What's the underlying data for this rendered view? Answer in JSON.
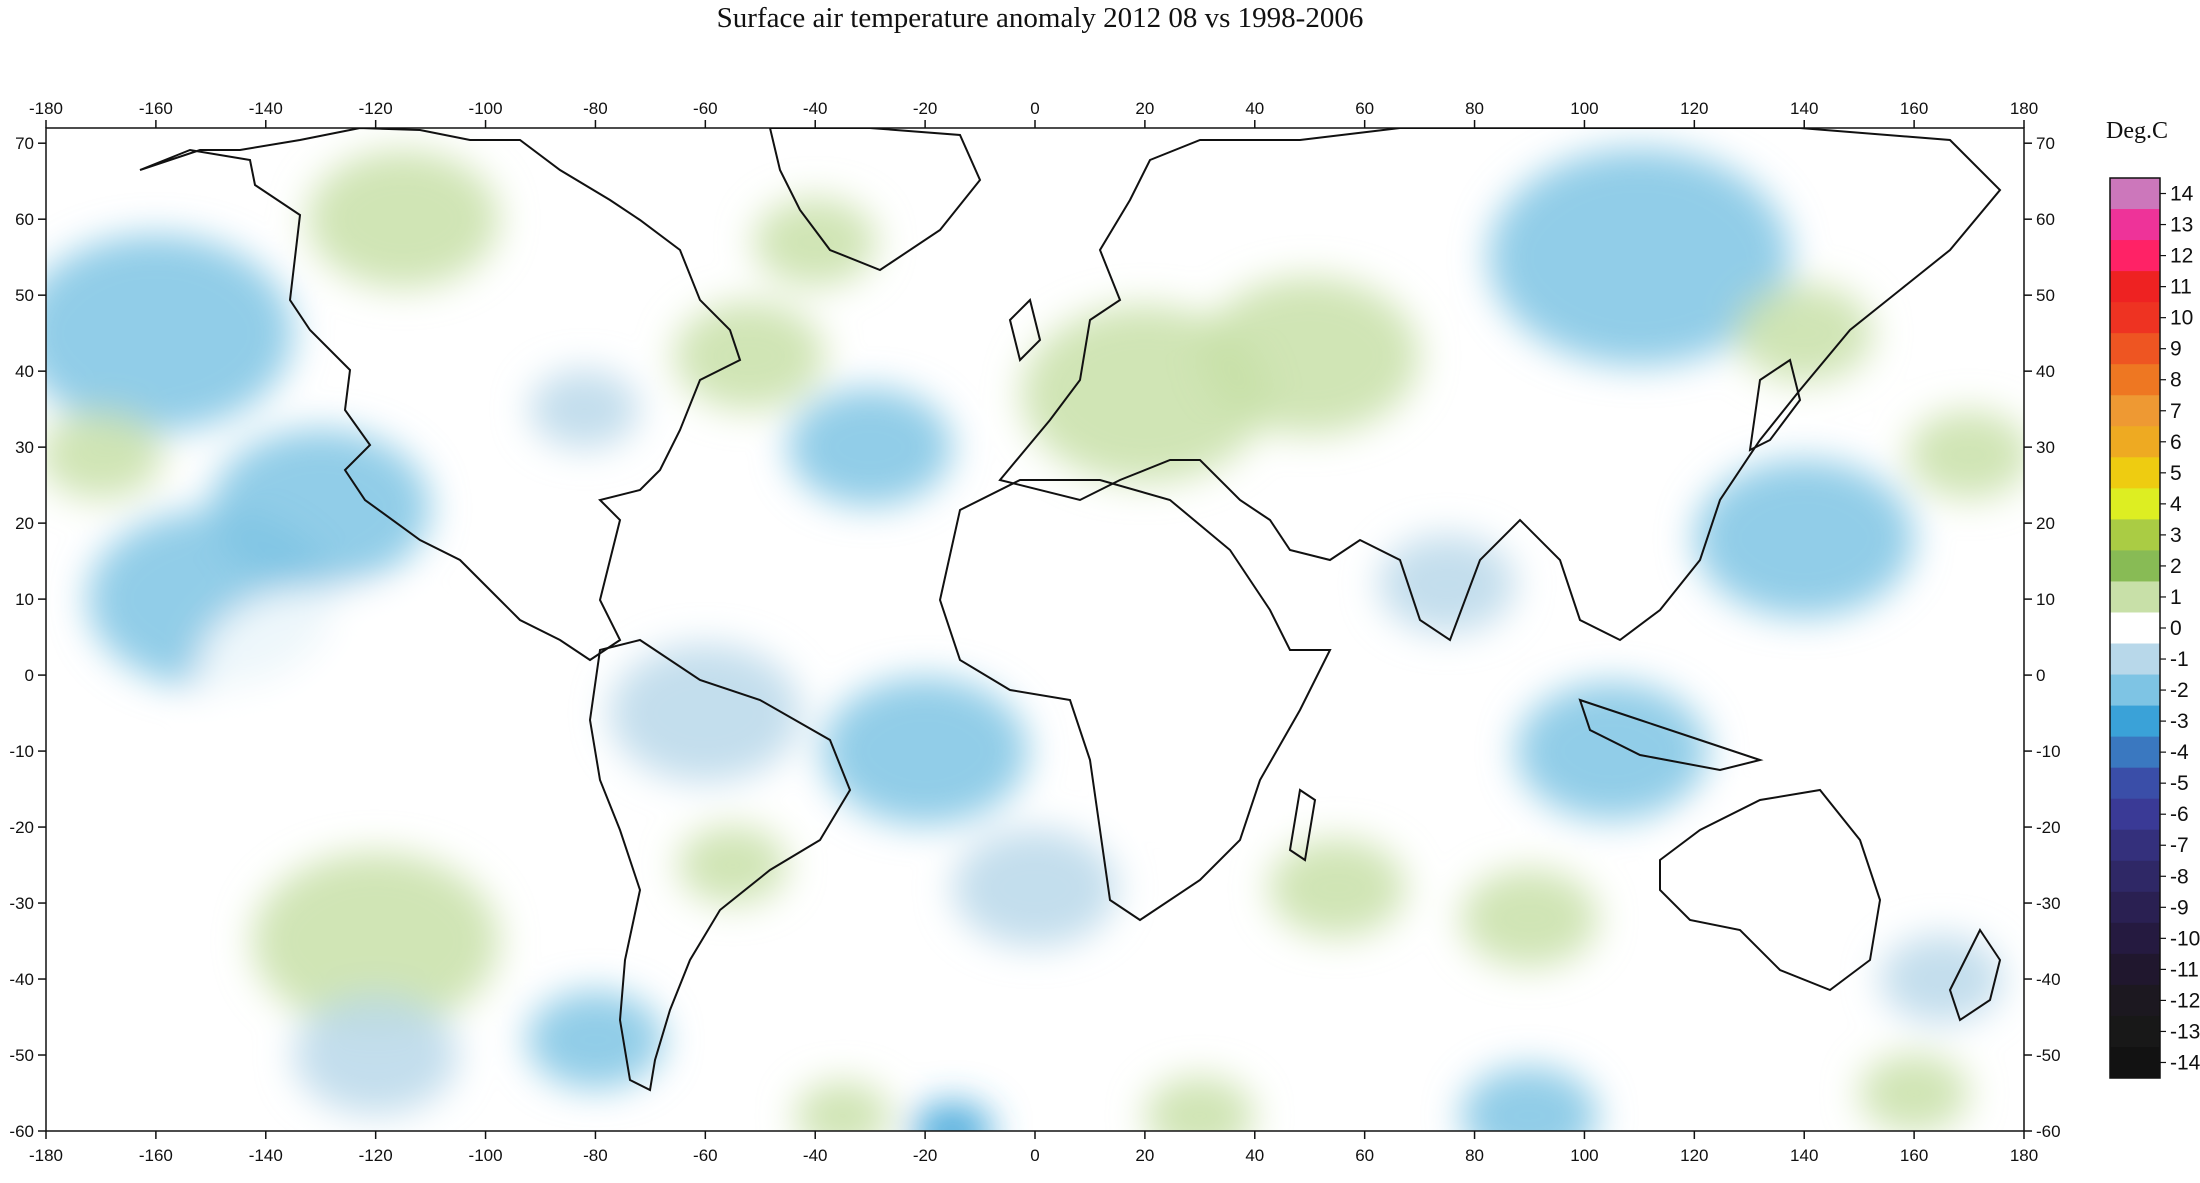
{
  "title": "Surface air temperature anomaly 2012 08 vs 1998-2006",
  "colorbar": {
    "title": "Deg.C",
    "levels": [
      14,
      13,
      12,
      11,
      10,
      9,
      8,
      7,
      6,
      5,
      4,
      3,
      2,
      1,
      0,
      -1,
      -2,
      -3,
      -4,
      -5,
      -6,
      -7,
      -8,
      -9,
      -10,
      -11,
      -12,
      -13,
      -14
    ],
    "colors": [
      "#cc77bb",
      "#ee3399",
      "#ff2266",
      "#ee2222",
      "#ee3322",
      "#ee5522",
      "#ee7722",
      "#ee9933",
      "#eeaa22",
      "#eecc11",
      "#ddee22",
      "#aacc44",
      "#88bb55",
      "#c8e0a8",
      "#ffffff",
      "#b8d8ea",
      "#7ec4e4",
      "#3aa2d8",
      "#3a78c0",
      "#3a4ea8",
      "#3a3a96",
      "#34307c",
      "#2f2866",
      "#2a2052",
      "#251a40",
      "#20172e",
      "#1c1820",
      "#181818",
      "#121212"
    ]
  },
  "map": {
    "lon_ticks": [
      -180,
      -160,
      -140,
      -120,
      -100,
      -80,
      -60,
      -40,
      -20,
      0,
      20,
      40,
      60,
      80,
      100,
      120,
      140,
      160,
      180
    ],
    "lat_ticks": [
      70,
      60,
      50,
      40,
      30,
      20,
      10,
      0,
      -10,
      -20,
      -30,
      -40,
      -50,
      -60
    ],
    "lon_range": [
      -180,
      180
    ],
    "lat_range": [
      -60,
      72
    ],
    "anomaly_blobs": [
      {
        "lon": -115,
        "lat": 60,
        "r": 14,
        "value": 1.3
      },
      {
        "lon": -52,
        "lat": 42,
        "r": 11,
        "value": 1.6
      },
      {
        "lon": -40,
        "lat": 57,
        "r": 9,
        "value": 1.2
      },
      {
        "lon": -160,
        "lat": 45,
        "r": 20,
        "value": -1.3
      },
      {
        "lon": -130,
        "lat": 22,
        "r": 16,
        "value": -1.6
      },
      {
        "lon": -150,
        "lat": 10,
        "r": 18,
        "value": -1.2
      },
      {
        "lon": -30,
        "lat": 30,
        "r": 12,
        "value": -1.7
      },
      {
        "lon": -82,
        "lat": 35,
        "r": 8,
        "value": -0.8
      },
      {
        "lon": -170,
        "lat": 29,
        "r": 9,
        "value": 1.3
      },
      {
        "lon": 50,
        "lat": 42,
        "r": 16,
        "value": 1.8
      },
      {
        "lon": 20,
        "lat": 37,
        "r": 18,
        "value": 1.0
      },
      {
        "lon": 110,
        "lat": 55,
        "r": 22,
        "value": -1.5
      },
      {
        "lon": 140,
        "lat": 45,
        "r": 10,
        "value": 1.2
      },
      {
        "lon": 170,
        "lat": 29,
        "r": 9,
        "value": 1.8
      },
      {
        "lon": 140,
        "lat": 18,
        "r": 16,
        "value": -1.2
      },
      {
        "lon": 105,
        "lat": -10,
        "r": 14,
        "value": -1.5
      },
      {
        "lon": 75,
        "lat": 12,
        "r": 10,
        "value": -0.9
      },
      {
        "lon": -20,
        "lat": -10,
        "r": 15,
        "value": -1.1
      },
      {
        "lon": 0,
        "lat": -28,
        "r": 12,
        "value": -1.0
      },
      {
        "lon": 55,
        "lat": -28,
        "r": 10,
        "value": 1.4
      },
      {
        "lon": 90,
        "lat": -32,
        "r": 10,
        "value": 1.3
      },
      {
        "lon": -55,
        "lat": -25,
        "r": 8,
        "value": 1.5
      },
      {
        "lon": -120,
        "lat": -35,
        "r": 18,
        "value": 1.0
      },
      {
        "lon": -130,
        "lat": 0,
        "r": 18,
        "value": 0.8
      },
      {
        "lon": -80,
        "lat": -48,
        "r": 10,
        "value": -1.3
      },
      {
        "lon": -120,
        "lat": -50,
        "r": 12,
        "value": -1.0
      },
      {
        "lon": -15,
        "lat": -60,
        "r": 6,
        "value": -3.0
      },
      {
        "lon": -35,
        "lat": -58,
        "r": 7,
        "value": 1.5
      },
      {
        "lon": 30,
        "lat": -58,
        "r": 8,
        "value": 1.0
      },
      {
        "lon": 90,
        "lat": -58,
        "r": 10,
        "value": -1.2
      },
      {
        "lon": 160,
        "lat": -55,
        "r": 8,
        "value": 1.0
      },
      {
        "lon": 165,
        "lat": -40,
        "r": 9,
        "value": -0.9
      },
      {
        "lon": 30,
        "lat": -10,
        "r": 12,
        "value": 0.9
      },
      {
        "lon": -60,
        "lat": -5,
        "r": 14,
        "value": -0.7
      },
      {
        "lon": 130,
        "lat": -25,
        "r": 10,
        "value": 0.9
      }
    ]
  }
}
